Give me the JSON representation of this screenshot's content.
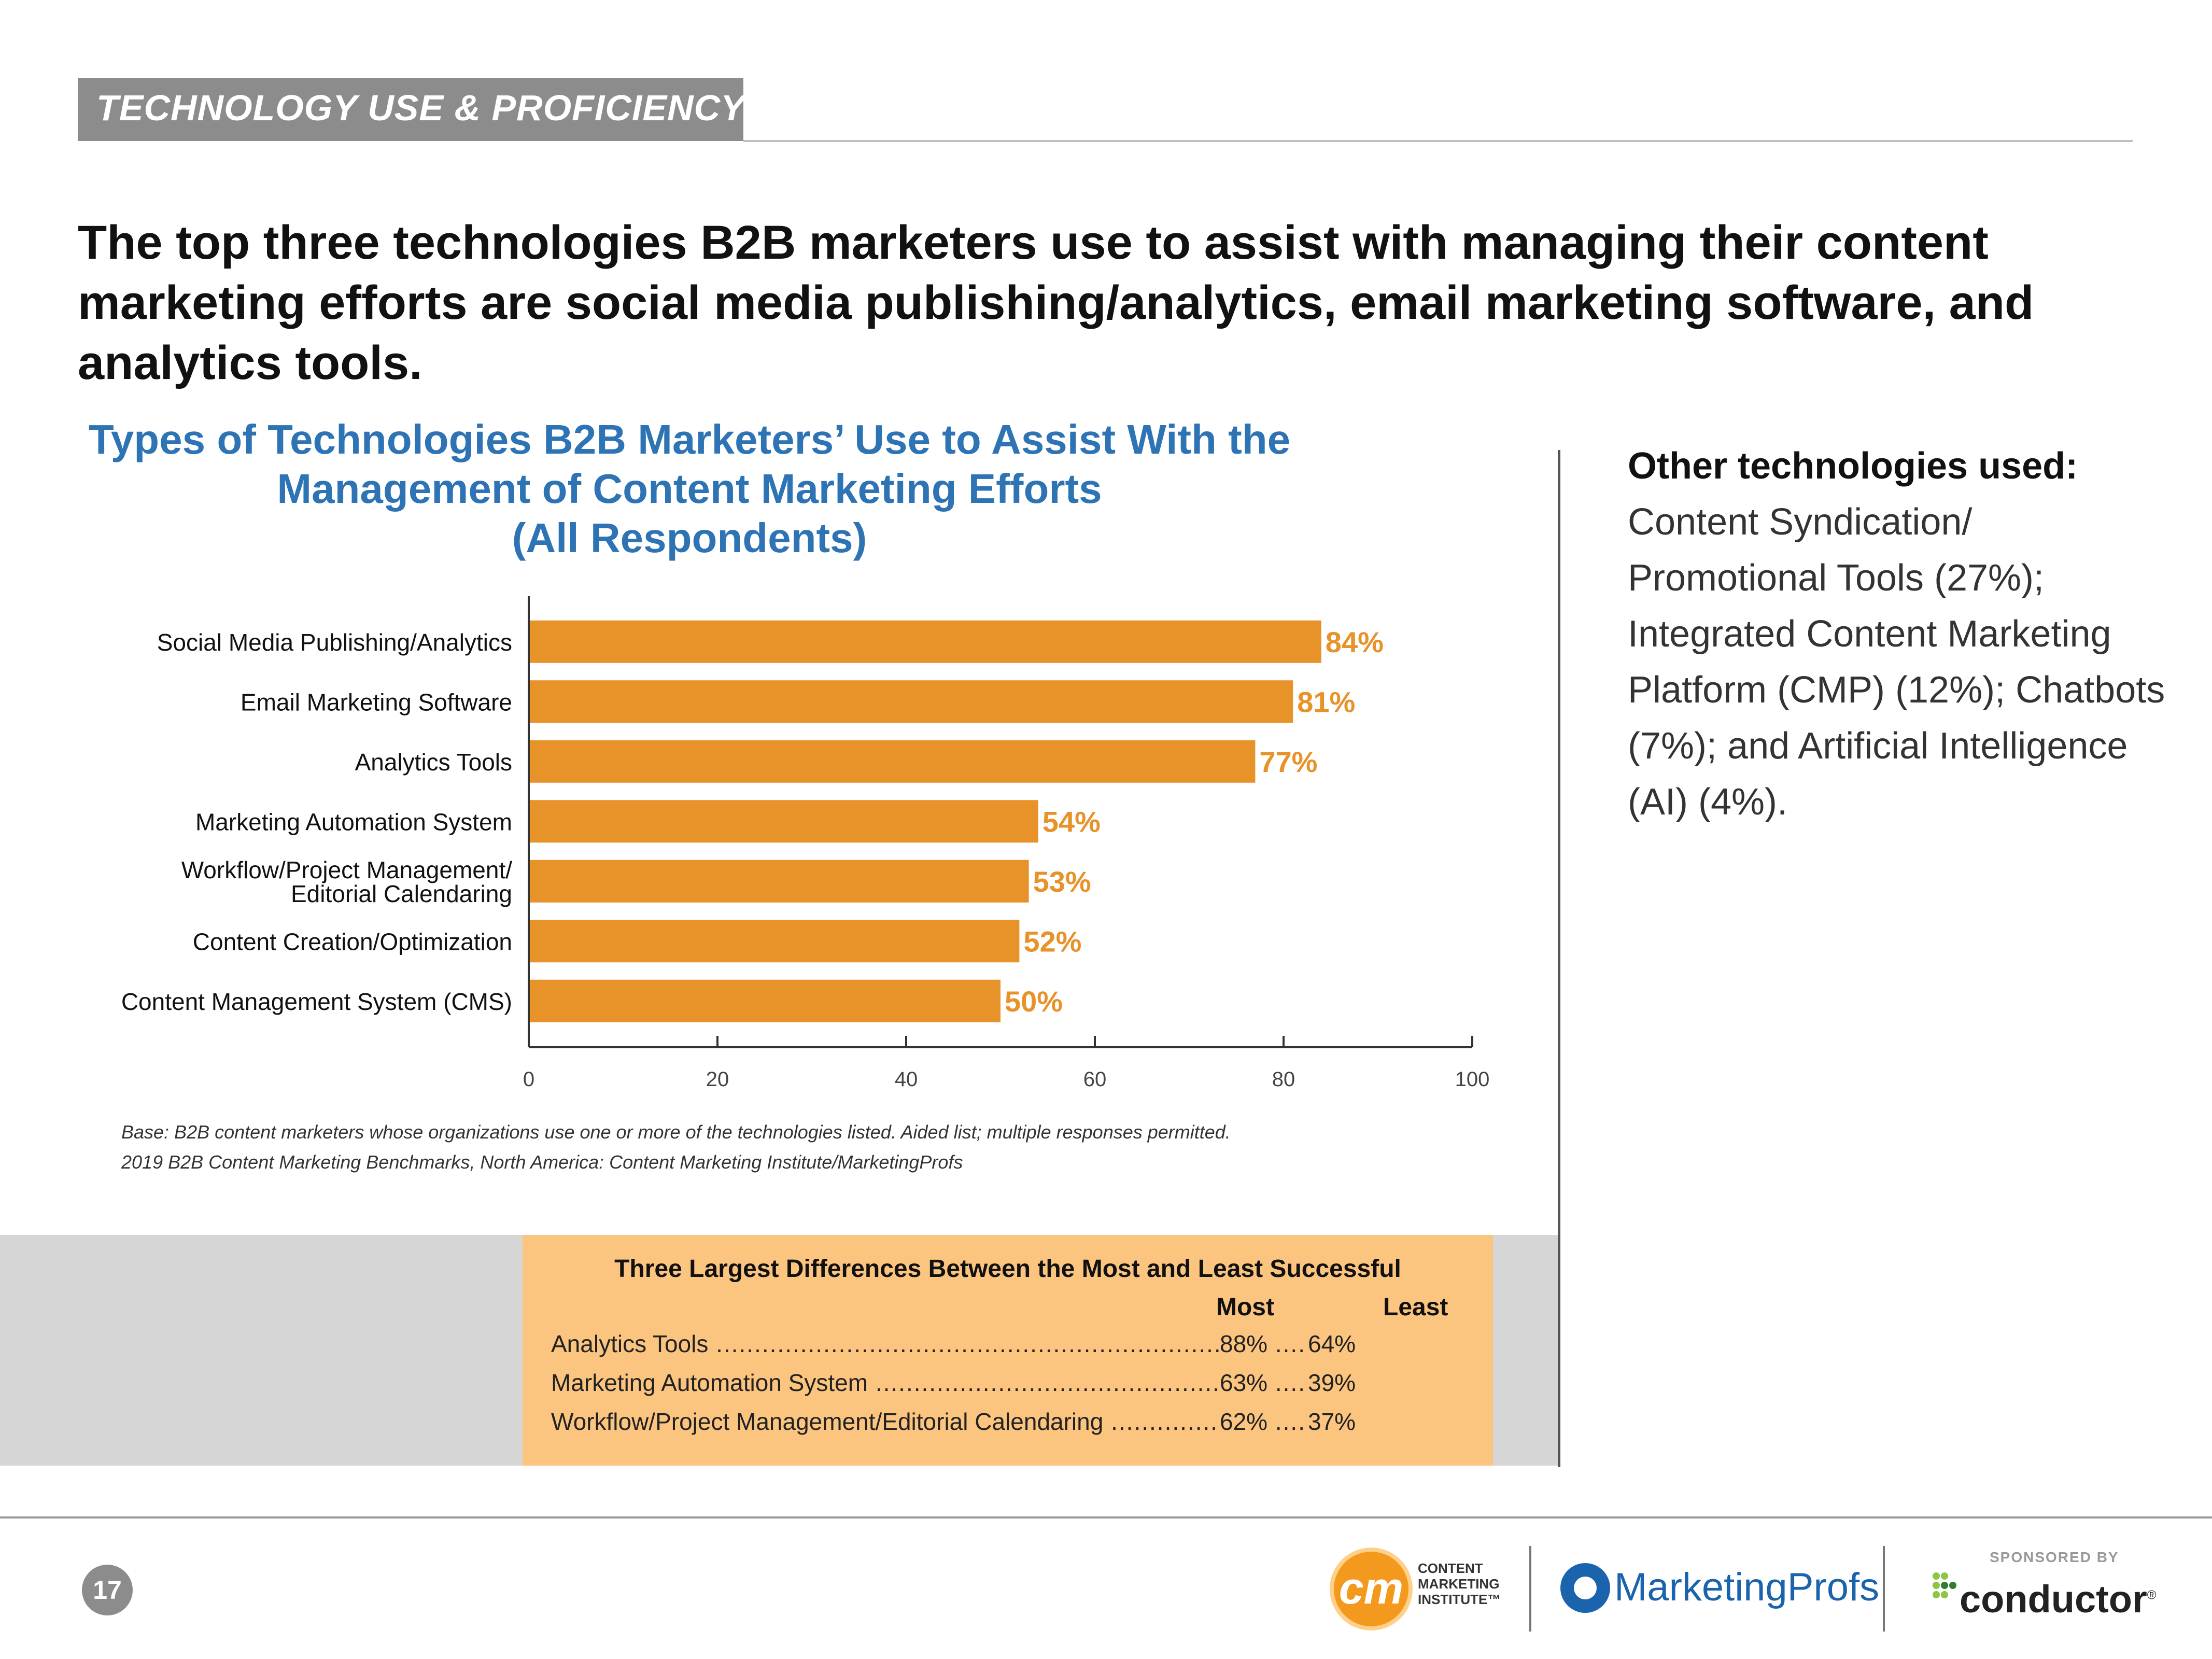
{
  "header": {
    "section": "TECHNOLOGY USE & PROFICIENCY",
    "headline": "The top three technologies B2B marketers use to assist with managing their content marketing efforts are social media publishing/analytics, email marketing software, and analytics tools."
  },
  "chart_data": {
    "type": "bar",
    "orientation": "horizontal",
    "title_lines": [
      "Types of Technologies B2B Marketers’ Use to Assist With the",
      "Management of Content Marketing Efforts",
      "(All Respondents)"
    ],
    "categories": [
      [
        "Social Media Publishing/Analytics"
      ],
      [
        "Email Marketing Software"
      ],
      [
        "Analytics Tools"
      ],
      [
        "Marketing Automation System"
      ],
      [
        "Workflow/Project Management/",
        "Editorial Calendaring"
      ],
      [
        "Content Creation/Optimization"
      ],
      [
        "Content Management System (CMS)"
      ]
    ],
    "values": [
      84,
      81,
      77,
      54,
      53,
      52,
      50
    ],
    "value_labels": [
      "84%",
      "81%",
      "77%",
      "54%",
      "53%",
      "52%",
      "50%"
    ],
    "xlim": [
      0,
      100
    ],
    "xticks": [
      0,
      20,
      40,
      60,
      80,
      100
    ],
    "xlabel": "",
    "ylabel": "",
    "grid": false,
    "bar_color": "#e8922a",
    "label_color": "#e8922a"
  },
  "source": {
    "line1": "Base: B2B content marketers whose organizations use one or more of the technologies listed. Aided list; multiple responses permitted.",
    "line2": "2019 B2B Content Marketing Benchmarks, North America: Content Marketing Institute/MarketingProfs"
  },
  "sidebar": {
    "title": "Other technologies used:",
    "body": "Content Syndication/ Promotional Tools (27%); Integrated Content Marketing Platform (CMP) (12%); Chatbots (7%); and Artificial Intelligence (AI) (4%)."
  },
  "differences": {
    "title": "Three Largest Differences Between the Most and Least Successful",
    "most_header": "Most",
    "least_header": "Least",
    "rows": [
      {
        "label": "Analytics Tools",
        "most": "88%",
        "least": "64%"
      },
      {
        "label": "Marketing Automation System",
        "most": "63%",
        "least": "39%"
      },
      {
        "label": "Workflow/Project Management/Editorial Calendaring",
        "most": "62%",
        "least": "37%"
      }
    ]
  },
  "footer": {
    "page_number": "17",
    "cmi_mark": "cm",
    "cmi_lines": [
      "CONTENT",
      "MARKETING",
      "INSTITUTE™"
    ],
    "marketingprofs": "MarketingProfs",
    "sponsored_by": "SPONSORED BY",
    "conductor": "conductor",
    "conductor_mark": "®"
  },
  "colors": {
    "accent_blue": "#2e74b5",
    "bar_orange": "#e8922a",
    "box_orange": "#fcc57f",
    "header_gray": "#8c8c8c"
  }
}
